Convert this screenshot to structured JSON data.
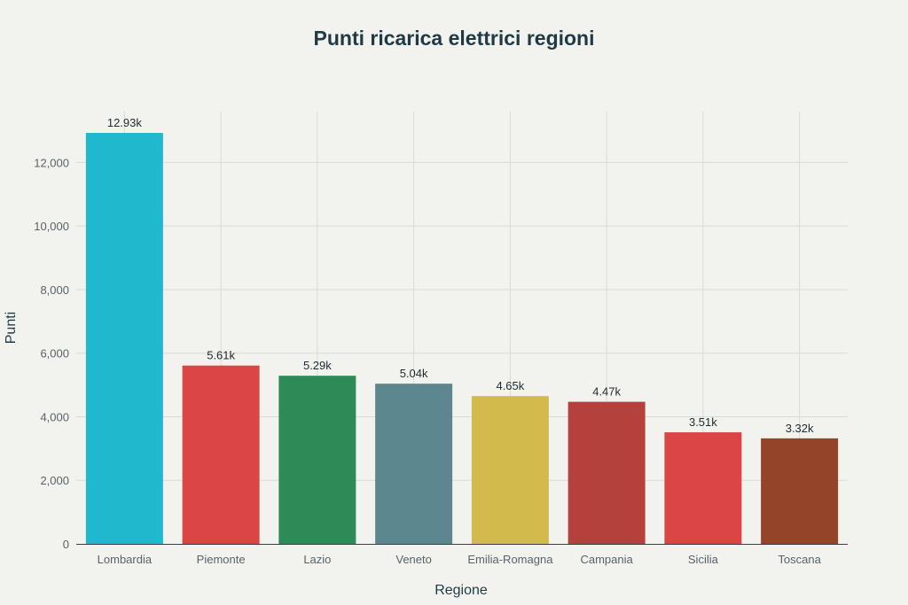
{
  "chart_data": {
    "type": "bar",
    "title": "Punti ricarica elettrici regioni",
    "xlabel": "Regione",
    "ylabel": "Punti",
    "categories": [
      "Lombardia",
      "Piemonte",
      "Lazio",
      "Veneto",
      "Emilia-Romagna",
      "Campania",
      "Sicilia",
      "Toscana"
    ],
    "values": [
      12930,
      5610,
      5290,
      5040,
      4650,
      4470,
      3510,
      3320
    ],
    "data_labels": [
      "12.93k",
      "5.61k",
      "5.29k",
      "5.04k",
      "4.65k",
      "4.47k",
      "3.51k",
      "3.32k"
    ],
    "colors": [
      "#1fb8cd",
      "#db4545",
      "#2e8b57",
      "#5d878f",
      "#d2ba4c",
      "#b4413c",
      "#db4545",
      "#944428"
    ],
    "ylim": [
      0,
      13600
    ],
    "yticks": [
      0,
      2000,
      4000,
      6000,
      8000,
      10000,
      12000
    ],
    "ytick_labels": [
      "0",
      "2,000",
      "4,000",
      "6,000",
      "8,000",
      "10,000",
      "12,000"
    ],
    "grid": true,
    "legend": "none"
  }
}
